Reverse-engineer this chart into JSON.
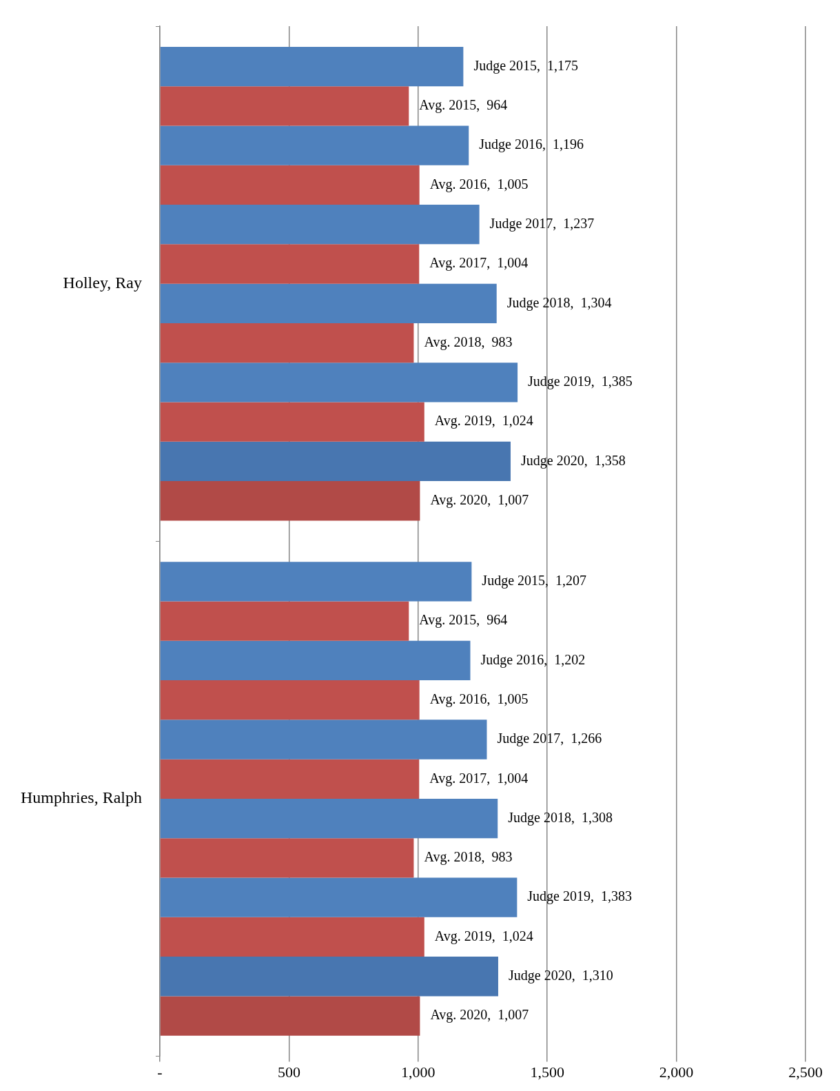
{
  "chart_data": {
    "type": "bar",
    "orientation": "horizontal",
    "categories": [
      "Holley, Ray",
      "Humphries, Ralph"
    ],
    "series": [
      {
        "color": "#4f81bd",
        "values": [
          1175,
          1207
        ],
        "value_labels": [
          "Judge 2015,  1,175",
          "Judge 2015,  1,207"
        ]
      },
      {
        "color": "#c0504d",
        "values": [
          964,
          964
        ],
        "value_labels": [
          "Avg. 2015,  964",
          "Avg. 2015,  964"
        ]
      },
      {
        "color": "#4f81bd",
        "values": [
          1196,
          1202
        ],
        "value_labels": [
          "Judge 2016,  1,196",
          "Judge 2016,  1,202"
        ]
      },
      {
        "color": "#c0504d",
        "values": [
          1005,
          1005
        ],
        "value_labels": [
          "Avg. 2016,  1,005",
          "Avg. 2016,  1,005"
        ]
      },
      {
        "color": "#4f81bd",
        "values": [
          1237,
          1266
        ],
        "value_labels": [
          "Judge 2017,  1,237",
          "Judge 2017,  1,266"
        ]
      },
      {
        "color": "#c0504d",
        "values": [
          1004,
          1004
        ],
        "value_labels": [
          "Avg. 2017,  1,004",
          "Avg. 2017,  1,004"
        ]
      },
      {
        "color": "#4f81bd",
        "values": [
          1304,
          1308
        ],
        "value_labels": [
          "Judge 2018,  1,304",
          "Judge 2018,  1,308"
        ]
      },
      {
        "color": "#c0504d",
        "values": [
          983,
          983
        ],
        "value_labels": [
          "Avg. 2018,  983",
          "Avg. 2018,  983"
        ]
      },
      {
        "color": "#4f81bd",
        "values": [
          1385,
          1383
        ],
        "value_labels": [
          "Judge 2019,  1,385",
          "Judge 2019,  1,383"
        ]
      },
      {
        "color": "#c0504d",
        "values": [
          1024,
          1024
        ],
        "value_labels": [
          "Avg. 2019,  1,024",
          "Avg. 2019,  1,024"
        ]
      },
      {
        "color": "#4876b0",
        "values": [
          1358,
          1310
        ],
        "value_labels": [
          "Judge 2020,  1,358",
          "Judge 2020,  1,310"
        ]
      },
      {
        "color": "#b14a47",
        "values": [
          1007,
          1007
        ],
        "value_labels": [
          "Avg. 2020,  1,007",
          "Avg. 2020,  1,007"
        ]
      }
    ],
    "xlim": [
      0,
      2500
    ],
    "xticks": [
      {
        "value": 0,
        "label": "-"
      },
      {
        "value": 500,
        "label": "500"
      },
      {
        "value": 1000,
        "label": "1,000"
      },
      {
        "value": 1500,
        "label": "1,500"
      },
      {
        "value": 2000,
        "label": "2,000"
      },
      {
        "value": 2500,
        "label": "2,500"
      }
    ],
    "grid": "x",
    "legend": false
  }
}
